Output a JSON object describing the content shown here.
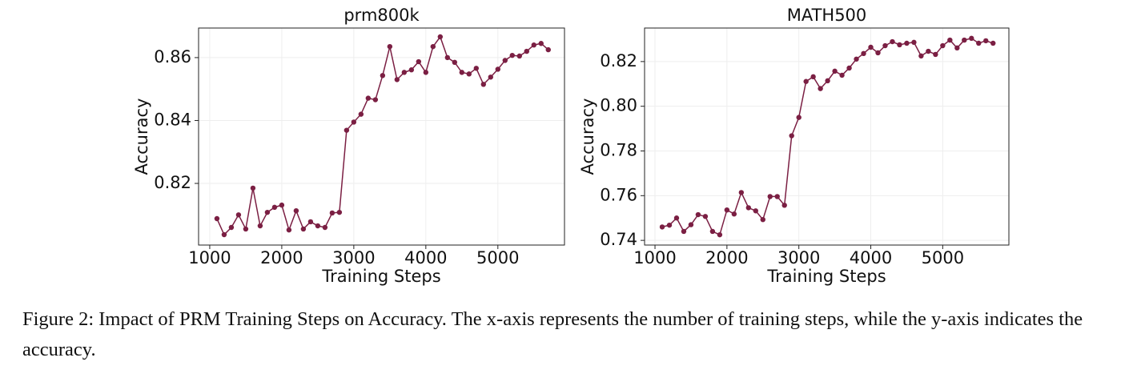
{
  "chart_data": [
    {
      "type": "line",
      "title": "prm800k",
      "x_label": "Training Steps",
      "y_label": "Accuracy",
      "grid": true,
      "x": [
        1100,
        1200,
        1300,
        1400,
        1500,
        1600,
        1700,
        1800,
        1900,
        2000,
        2100,
        2200,
        2300,
        2400,
        2500,
        2600,
        2700,
        2800,
        2900,
        3000,
        3100,
        3200,
        3300,
        3400,
        3500,
        3600,
        3700,
        3800,
        3900,
        4000,
        4100,
        4200,
        4300,
        4400,
        4500,
        4600,
        4700,
        4800,
        4900,
        5000,
        5100,
        5200,
        5300,
        5400,
        5500,
        5600,
        5700
      ],
      "series": [
        {
          "color": "#7b1f43",
          "values": [
            0.8088,
            0.8037,
            0.806,
            0.81,
            0.8055,
            0.8185,
            0.8065,
            0.8108,
            0.8124,
            0.8131,
            0.8052,
            0.8113,
            0.8055,
            0.8078,
            0.8065,
            0.806,
            0.8106,
            0.8108,
            0.8369,
            0.8395,
            0.842,
            0.8471,
            0.8466,
            0.8543,
            0.8635,
            0.853,
            0.8553,
            0.8561,
            0.8587,
            0.8553,
            0.8635,
            0.8666,
            0.86,
            0.8585,
            0.8553,
            0.8548,
            0.8566,
            0.8515,
            0.8538,
            0.8563,
            0.8591,
            0.8607,
            0.8605,
            0.862,
            0.864,
            0.8645,
            0.8625
          ]
        }
      ],
      "xlim": [
        845,
        5925
      ],
      "xticks": [
        1000,
        2000,
        3000,
        4000,
        5000
      ],
      "ylim": [
        0.8004,
        0.8694
      ],
      "yticks": [
        0.82,
        0.84,
        0.86
      ]
    },
    {
      "type": "line",
      "title": "MATH500",
      "x_label": "Training Steps",
      "y_label": "Accuracy",
      "grid": true,
      "x": [
        1100,
        1200,
        1300,
        1400,
        1500,
        1600,
        1700,
        1800,
        1900,
        2000,
        2100,
        2200,
        2300,
        2400,
        2500,
        2600,
        2700,
        2800,
        2900,
        3000,
        3100,
        3200,
        3300,
        3400,
        3500,
        3600,
        3700,
        3800,
        3900,
        4000,
        4100,
        4200,
        4300,
        4400,
        4500,
        4600,
        4700,
        4800,
        4900,
        5000,
        5100,
        5200,
        5300,
        5400,
        5500,
        5600,
        5700
      ],
      "series": [
        {
          "color": "#7b1f43",
          "values": [
            0.746,
            0.7468,
            0.75,
            0.744,
            0.747,
            0.7515,
            0.7507,
            0.744,
            0.7425,
            0.7536,
            0.7518,
            0.7614,
            0.7546,
            0.7532,
            0.7493,
            0.7596,
            0.7596,
            0.7557,
            0.7868,
            0.795,
            0.8111,
            0.8132,
            0.8079,
            0.8114,
            0.8157,
            0.8139,
            0.8171,
            0.8211,
            0.8236,
            0.8264,
            0.8239,
            0.8271,
            0.8289,
            0.8275,
            0.8282,
            0.8286,
            0.8225,
            0.8246,
            0.8232,
            0.8271,
            0.8296,
            0.8261,
            0.8296,
            0.8304,
            0.8282,
            0.8293,
            0.8282
          ]
        }
      ],
      "xlim": [
        855,
        5920
      ],
      "xticks": [
        1000,
        2000,
        3000,
        4000,
        5000
      ],
      "ylim": [
        0.7379,
        0.835
      ],
      "yticks": [
        {
          "value": 0.74,
          "label": "0.74"
        },
        0.76,
        0.78,
        {
          "value": 0.8,
          "label": "0.80"
        },
        0.82
      ]
    }
  ],
  "caption": "Figure 2: Impact of PRM Training Steps on Accuracy. The x-axis represents the number of training steps, while the y-axis indicates the accuracy."
}
